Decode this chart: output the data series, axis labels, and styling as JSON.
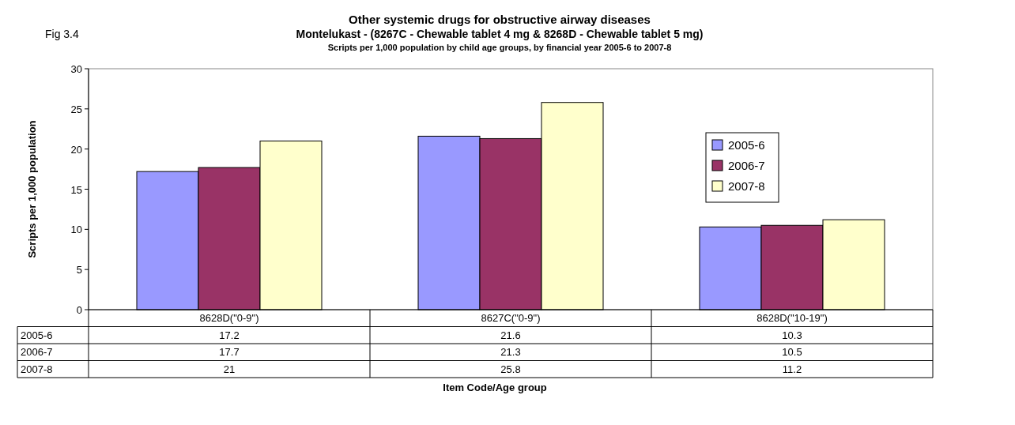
{
  "chart_data": {
    "type": "bar",
    "title": "Other systemic drugs for obstructive airway diseases",
    "subtitle": "Montelukast - (8267C - Chewable tablet 4 mg & 8268D - Chewable tablet 5 mg)",
    "annotations": [
      "Scripts per 1,000 population by child age groups, by financial year 2005-6 to 2007-8",
      "Fig 3.4",
      "Item Code/Age group"
    ],
    "ylabel": "Scripts per 1,000 population",
    "categories": [
      "8628D(\"0-9\")",
      "8627C(\"0-9\")",
      "8628D(\"10-19\")"
    ],
    "series": [
      {
        "name": "2005-6",
        "color": "#9999ff",
        "values": [
          17.2,
          21.6,
          10.3
        ]
      },
      {
        "name": "2006-7",
        "color": "#993366",
        "values": [
          17.7,
          21.3,
          10.5
        ]
      },
      {
        "name": "2007-8",
        "color": "#ffffcc",
        "values": [
          21,
          25.8,
          11.2
        ]
      }
    ],
    "ylim": [
      0,
      30
    ],
    "yticks": [
      0,
      5,
      10,
      15,
      20,
      25,
      30
    ],
    "grid": false,
    "legend": "right",
    "data_labels": true
  }
}
